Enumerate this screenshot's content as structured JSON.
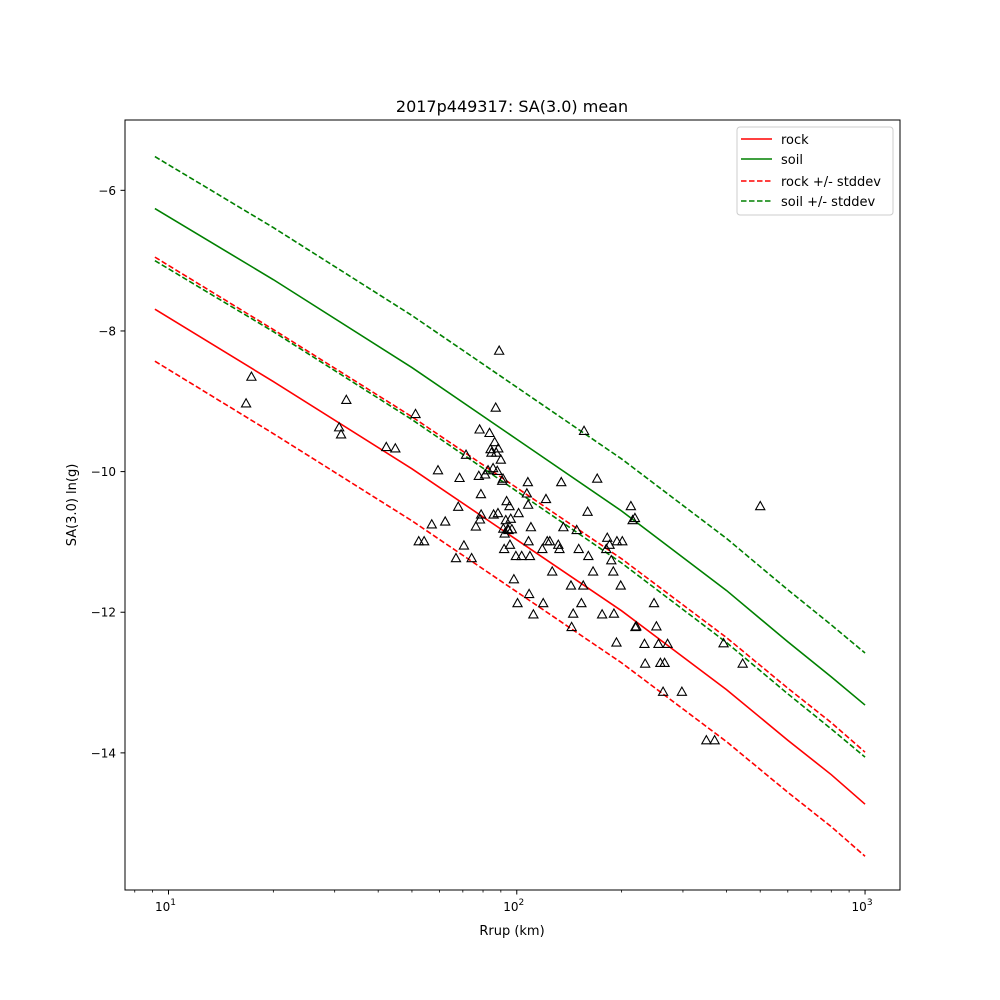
{
  "chart_data": {
    "type": "scatter",
    "title": "2017p449317: SA(3.0) mean",
    "xlabel": "Rrup (km)",
    "ylabel": "SA(3.0) ln(g)",
    "xscale": "log",
    "xlim": [
      7.5,
      1260
    ],
    "ylim": [
      -15.95,
      -5.0
    ],
    "grid": false,
    "legend_position": "top-right",
    "x_ticks": [
      {
        "value": 10,
        "base": "10",
        "exp": "1"
      },
      {
        "value": 100,
        "base": "10",
        "exp": "2"
      },
      {
        "value": 1000,
        "base": "10",
        "exp": "3"
      }
    ],
    "y_ticks": [
      {
        "value": -6,
        "label": "−6"
      },
      {
        "value": -8,
        "label": "−8"
      },
      {
        "value": -10,
        "label": "−10"
      },
      {
        "value": -12,
        "label": "−12"
      },
      {
        "value": -14,
        "label": "−14"
      }
    ],
    "series": [
      {
        "name": "rock",
        "color": "#ff0000",
        "style": "solid",
        "x": [
          9.14,
          20,
          50,
          100,
          200,
          400,
          600,
          800,
          1000
        ],
        "y": [
          -7.69,
          -8.72,
          -9.96,
          -10.97,
          -11.98,
          -13.1,
          -13.82,
          -14.31,
          -14.73
        ]
      },
      {
        "name": "soil",
        "color": "#008000",
        "style": "solid",
        "x": [
          9.14,
          20,
          50,
          100,
          200,
          400,
          600,
          800,
          1000
        ],
        "y": [
          -6.26,
          -7.27,
          -8.52,
          -9.54,
          -10.56,
          -11.69,
          -12.42,
          -12.92,
          -13.32
        ]
      },
      {
        "name": "rock +/- stddev",
        "color": "#ff0000",
        "style": "dashed",
        "band_of": "rock",
        "offset": 0.74
      },
      {
        "name": "soil +/- stddev",
        "color": "#008000",
        "style": "dashed",
        "band_of": "soil",
        "offset": 0.74
      }
    ],
    "observations": {
      "marker": "triangle",
      "color": "#000000",
      "points": [
        [
          17.3,
          -8.65
        ],
        [
          16.7,
          -9.03
        ],
        [
          30.9,
          -9.37
        ],
        [
          31.3,
          -9.47
        ],
        [
          32.4,
          -8.98
        ],
        [
          42.2,
          -9.65
        ],
        [
          44.8,
          -9.67
        ],
        [
          51.2,
          -9.18
        ],
        [
          52.3,
          -10.99
        ],
        [
          54.2,
          -10.99
        ],
        [
          57.0,
          -10.75
        ],
        [
          59.4,
          -9.98
        ],
        [
          62.3,
          -10.71
        ],
        [
          66.9,
          -11.23
        ],
        [
          67.9,
          -10.5
        ],
        [
          68.5,
          -10.09
        ],
        [
          70.5,
          -11.05
        ],
        [
          71.5,
          -9.76
        ],
        [
          74.2,
          -11.23
        ],
        [
          76.3,
          -10.78
        ],
        [
          77.8,
          -10.06
        ],
        [
          78.2,
          -9.4
        ],
        [
          78.4,
          -10.68
        ],
        [
          78.9,
          -10.32
        ],
        [
          79.0,
          -10.61
        ],
        [
          81.1,
          -10.04
        ],
        [
          82.7,
          -9.98
        ],
        [
          83.5,
          -9.45
        ],
        [
          84.1,
          -9.68
        ],
        [
          84.6,
          -9.73
        ],
        [
          85.5,
          -9.95
        ],
        [
          85.8,
          -10.61
        ],
        [
          86.4,
          -9.58
        ],
        [
          87.0,
          -9.09
        ],
        [
          87.3,
          -9.73
        ],
        [
          87.9,
          -9.99
        ],
        [
          88.3,
          -10.59
        ],
        [
          88.5,
          -9.67
        ],
        [
          89.0,
          -8.28
        ],
        [
          90.0,
          -9.83
        ],
        [
          90.8,
          -10.13
        ],
        [
          91.3,
          -10.1
        ],
        [
          91.5,
          -10.81
        ],
        [
          92.0,
          -11.1
        ],
        [
          92.3,
          -10.88
        ],
        [
          93.0,
          -10.69
        ],
        [
          93.5,
          -10.42
        ],
        [
          94.2,
          -10.82
        ],
        [
          94.7,
          -10.83
        ],
        [
          95.3,
          -10.49
        ],
        [
          95.6,
          -11.04
        ],
        [
          96.1,
          -10.67
        ],
        [
          96.8,
          -10.82
        ],
        [
          98.1,
          -11.53
        ],
        [
          99.4,
          -11.2
        ],
        [
          100.5,
          -11.87
        ],
        [
          101.2,
          -10.59
        ],
        [
          103.3,
          -11.2
        ],
        [
          106.9,
          -10.31
        ],
        [
          107.6,
          -10.15
        ],
        [
          107.8,
          -10.47
        ],
        [
          108.1,
          -10.99
        ],
        [
          108.5,
          -11.74
        ],
        [
          109.1,
          -11.2
        ],
        [
          109.8,
          -10.79
        ],
        [
          111.6,
          -12.03
        ],
        [
          118.4,
          -11.1
        ],
        [
          119.1,
          -11.87
        ],
        [
          121.3,
          -10.39
        ],
        [
          122.3,
          -10.99
        ],
        [
          124.4,
          -10.99
        ],
        [
          126.4,
          -11.42
        ],
        [
          131.6,
          -11.04
        ],
        [
          132.6,
          -11.1
        ],
        [
          134.2,
          -10.15
        ],
        [
          136.1,
          -10.79
        ],
        [
          143.1,
          -11.62
        ],
        [
          143.7,
          -12.21
        ],
        [
          145.2,
          -12.02
        ],
        [
          148.6,
          -10.83
        ],
        [
          150.6,
          -11.1
        ],
        [
          153.3,
          -11.87
        ],
        [
          155.2,
          -11.62
        ],
        [
          156.0,
          -9.42
        ],
        [
          160.5,
          -11.2
        ],
        [
          159.7,
          -10.57
        ],
        [
          165.6,
          -11.42
        ],
        [
          170.2,
          -10.1
        ],
        [
          175.8,
          -12.03
        ],
        [
          180.7,
          -11.1
        ],
        [
          181.9,
          -10.94
        ],
        [
          184.7,
          -11.04
        ],
        [
          186.8,
          -11.26
        ],
        [
          189.3,
          -11.42
        ],
        [
          190.1,
          -12.02
        ],
        [
          193.3,
          -12.43
        ],
        [
          193.9,
          -10.99
        ],
        [
          198.8,
          -11.62
        ],
        [
          200.9,
          -10.99
        ],
        [
          212.6,
          -10.49
        ],
        [
          215.1,
          -10.69
        ],
        [
          218.4,
          -10.66
        ],
        [
          219.1,
          -12.21
        ],
        [
          220.4,
          -12.2
        ],
        [
          232.6,
          -12.45
        ],
        [
          233.7,
          -12.73
        ],
        [
          247.8,
          -11.87
        ],
        [
          251.7,
          -12.2
        ],
        [
          255.2,
          -12.45
        ],
        [
          258.4,
          -12.72
        ],
        [
          263.1,
          -13.13
        ],
        [
          265.7,
          -12.72
        ],
        [
          271.0,
          -12.45
        ],
        [
          297.9,
          -13.13
        ],
        [
          350.2,
          -13.82
        ],
        [
          369.9,
          -13.82
        ],
        [
          392.4,
          -12.44
        ],
        [
          445.3,
          -12.73
        ],
        [
          500.1,
          -10.49
        ]
      ]
    }
  }
}
